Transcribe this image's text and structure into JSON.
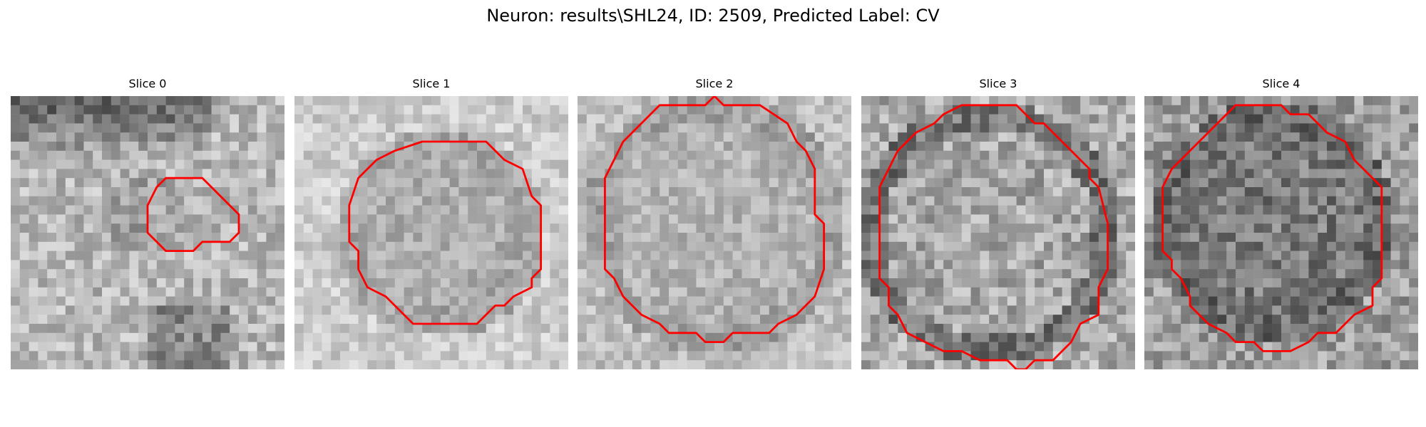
{
  "title": "Neuron: results\\SHL24, ID: 2509, Predicted Label: CV",
  "panels": [
    {
      "label": "Slice 0",
      "contour": [
        [
          18,
          9
        ],
        [
          21,
          9
        ],
        [
          24,
          12
        ],
        [
          25,
          13
        ],
        [
          25,
          15
        ],
        [
          24,
          16
        ],
        [
          21,
          16
        ],
        [
          20,
          17
        ],
        [
          17,
          17
        ],
        [
          16,
          16
        ],
        [
          15,
          15
        ],
        [
          15,
          12
        ],
        [
          16,
          10
        ],
        [
          17,
          9
        ]
      ]
    },
    {
      "label": "Slice 1",
      "contour": [
        [
          14,
          5
        ],
        [
          21,
          5
        ],
        [
          23,
          7
        ],
        [
          25,
          8
        ],
        [
          26,
          11
        ],
        [
          27,
          12
        ],
        [
          27,
          19
        ],
        [
          26,
          20
        ],
        [
          26,
          21
        ],
        [
          24,
          22
        ],
        [
          23,
          23
        ],
        [
          22,
          23
        ],
        [
          20,
          25
        ],
        [
          13,
          25
        ],
        [
          11,
          23
        ],
        [
          10,
          22
        ],
        [
          8,
          21
        ],
        [
          7,
          19
        ],
        [
          7,
          17
        ],
        [
          6,
          16
        ],
        [
          6,
          12
        ],
        [
          7,
          9
        ],
        [
          9,
          7
        ],
        [
          11,
          6
        ]
      ]
    },
    {
      "label": "Slice 2",
      "contour": [
        [
          9,
          1
        ],
        [
          14,
          1
        ],
        [
          15,
          0
        ],
        [
          16,
          1
        ],
        [
          20,
          1
        ],
        [
          23,
          3
        ],
        [
          24,
          5
        ],
        [
          25,
          6
        ],
        [
          26,
          8
        ],
        [
          26,
          13
        ],
        [
          27,
          14
        ],
        [
          27,
          19
        ],
        [
          26,
          22
        ],
        [
          25,
          23
        ],
        [
          24,
          24
        ],
        [
          22,
          25
        ],
        [
          21,
          26
        ],
        [
          17,
          26
        ],
        [
          16,
          27
        ],
        [
          14,
          27
        ],
        [
          13,
          26
        ],
        [
          10,
          26
        ],
        [
          9,
          25
        ],
        [
          7,
          24
        ],
        [
          5,
          22
        ],
        [
          4,
          20
        ],
        [
          3,
          19
        ],
        [
          3,
          9
        ],
        [
          4,
          7
        ],
        [
          5,
          5
        ],
        [
          7,
          3
        ]
      ]
    },
    {
      "label": "Slice 3",
      "contour": [
        [
          11,
          1
        ],
        [
          17,
          1
        ],
        [
          19,
          3
        ],
        [
          20,
          3
        ],
        [
          22,
          5
        ],
        [
          23,
          6
        ],
        [
          24,
          7
        ],
        [
          25,
          8
        ],
        [
          25,
          9
        ],
        [
          26,
          10
        ],
        [
          27,
          14
        ],
        [
          27,
          19
        ],
        [
          26,
          21
        ],
        [
          26,
          24
        ],
        [
          24,
          25
        ],
        [
          23,
          27
        ],
        [
          22,
          28
        ],
        [
          21,
          29
        ],
        [
          19,
          29
        ],
        [
          18,
          30
        ],
        [
          17,
          30
        ],
        [
          16,
          29
        ],
        [
          13,
          29
        ],
        [
          11,
          28
        ],
        [
          9,
          28
        ],
        [
          7,
          27
        ],
        [
          5,
          26
        ],
        [
          4,
          24
        ],
        [
          3,
          23
        ],
        [
          3,
          21
        ],
        [
          2,
          20
        ],
        [
          2,
          10
        ],
        [
          3,
          8
        ],
        [
          4,
          6
        ],
        [
          5,
          5
        ],
        [
          6,
          4
        ],
        [
          8,
          3
        ],
        [
          9,
          2
        ]
      ]
    },
    {
      "label": "Slice 4",
      "contour": [
        [
          10,
          1
        ],
        [
          15,
          1
        ],
        [
          16,
          2
        ],
        [
          18,
          2
        ],
        [
          19,
          3
        ],
        [
          20,
          4
        ],
        [
          22,
          5
        ],
        [
          23,
          7
        ],
        [
          24,
          8
        ],
        [
          25,
          9
        ],
        [
          26,
          10
        ],
        [
          26,
          20
        ],
        [
          25,
          21
        ],
        [
          25,
          23
        ],
        [
          23,
          24
        ],
        [
          22,
          25
        ],
        [
          21,
          26
        ],
        [
          19,
          26
        ],
        [
          18,
          27
        ],
        [
          16,
          28
        ],
        [
          13,
          28
        ],
        [
          12,
          27
        ],
        [
          10,
          27
        ],
        [
          9,
          26
        ],
        [
          7,
          25
        ],
        [
          6,
          24
        ],
        [
          5,
          23
        ],
        [
          5,
          22
        ],
        [
          4,
          20
        ],
        [
          3,
          19
        ],
        [
          3,
          18
        ],
        [
          2,
          17
        ],
        [
          2,
          10
        ],
        [
          3,
          8
        ],
        [
          4,
          7
        ],
        [
          5,
          6
        ],
        [
          6,
          5
        ],
        [
          7,
          4
        ],
        [
          8,
          3
        ],
        [
          9,
          2
        ]
      ]
    }
  ]
}
